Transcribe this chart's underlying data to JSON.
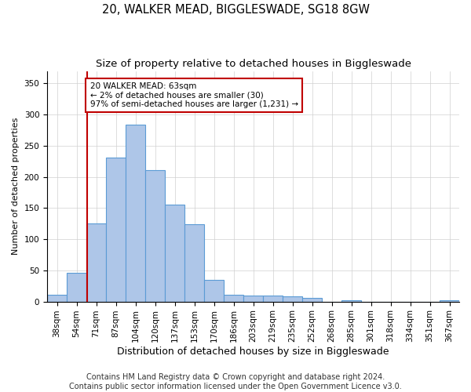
{
  "title": "20, WALKER MEAD, BIGGLESWADE, SG18 8GW",
  "subtitle": "Size of property relative to detached houses in Biggleswade",
  "xlabel": "Distribution of detached houses by size in Biggleswade",
  "ylabel": "Number of detached properties",
  "bins": [
    "38sqm",
    "54sqm",
    "71sqm",
    "87sqm",
    "104sqm",
    "120sqm",
    "137sqm",
    "153sqm",
    "170sqm",
    "186sqm",
    "203sqm",
    "219sqm",
    "235sqm",
    "252sqm",
    "268sqm",
    "285sqm",
    "301sqm",
    "318sqm",
    "334sqm",
    "351sqm",
    "367sqm"
  ],
  "values": [
    11,
    46,
    125,
    231,
    284,
    211,
    155,
    124,
    35,
    11,
    10,
    10,
    8,
    6,
    0,
    2,
    0,
    0,
    0,
    0,
    2
  ],
  "bar_color": "#aec6e8",
  "bar_edge_color": "#5b9bd5",
  "vline_x": 1.15,
  "vline_color": "#c00000",
  "annotation_text": "20 WALKER MEAD: 63sqm\n← 2% of detached houses are smaller (30)\n97% of semi-detached houses are larger (1,231) →",
  "annotation_box_color": "white",
  "annotation_box_edgecolor": "#c00000",
  "ylim": [
    0,
    370
  ],
  "yticks": [
    0,
    50,
    100,
    150,
    200,
    250,
    300,
    350
  ],
  "footer1": "Contains HM Land Registry data © Crown copyright and database right 2024.",
  "footer2": "Contains public sector information licensed under the Open Government Licence v3.0.",
  "title_fontsize": 10.5,
  "subtitle_fontsize": 9.5,
  "xlabel_fontsize": 9,
  "ylabel_fontsize": 8,
  "tick_fontsize": 7.5,
  "annotation_fontsize": 7.5,
  "footer_fontsize": 7
}
